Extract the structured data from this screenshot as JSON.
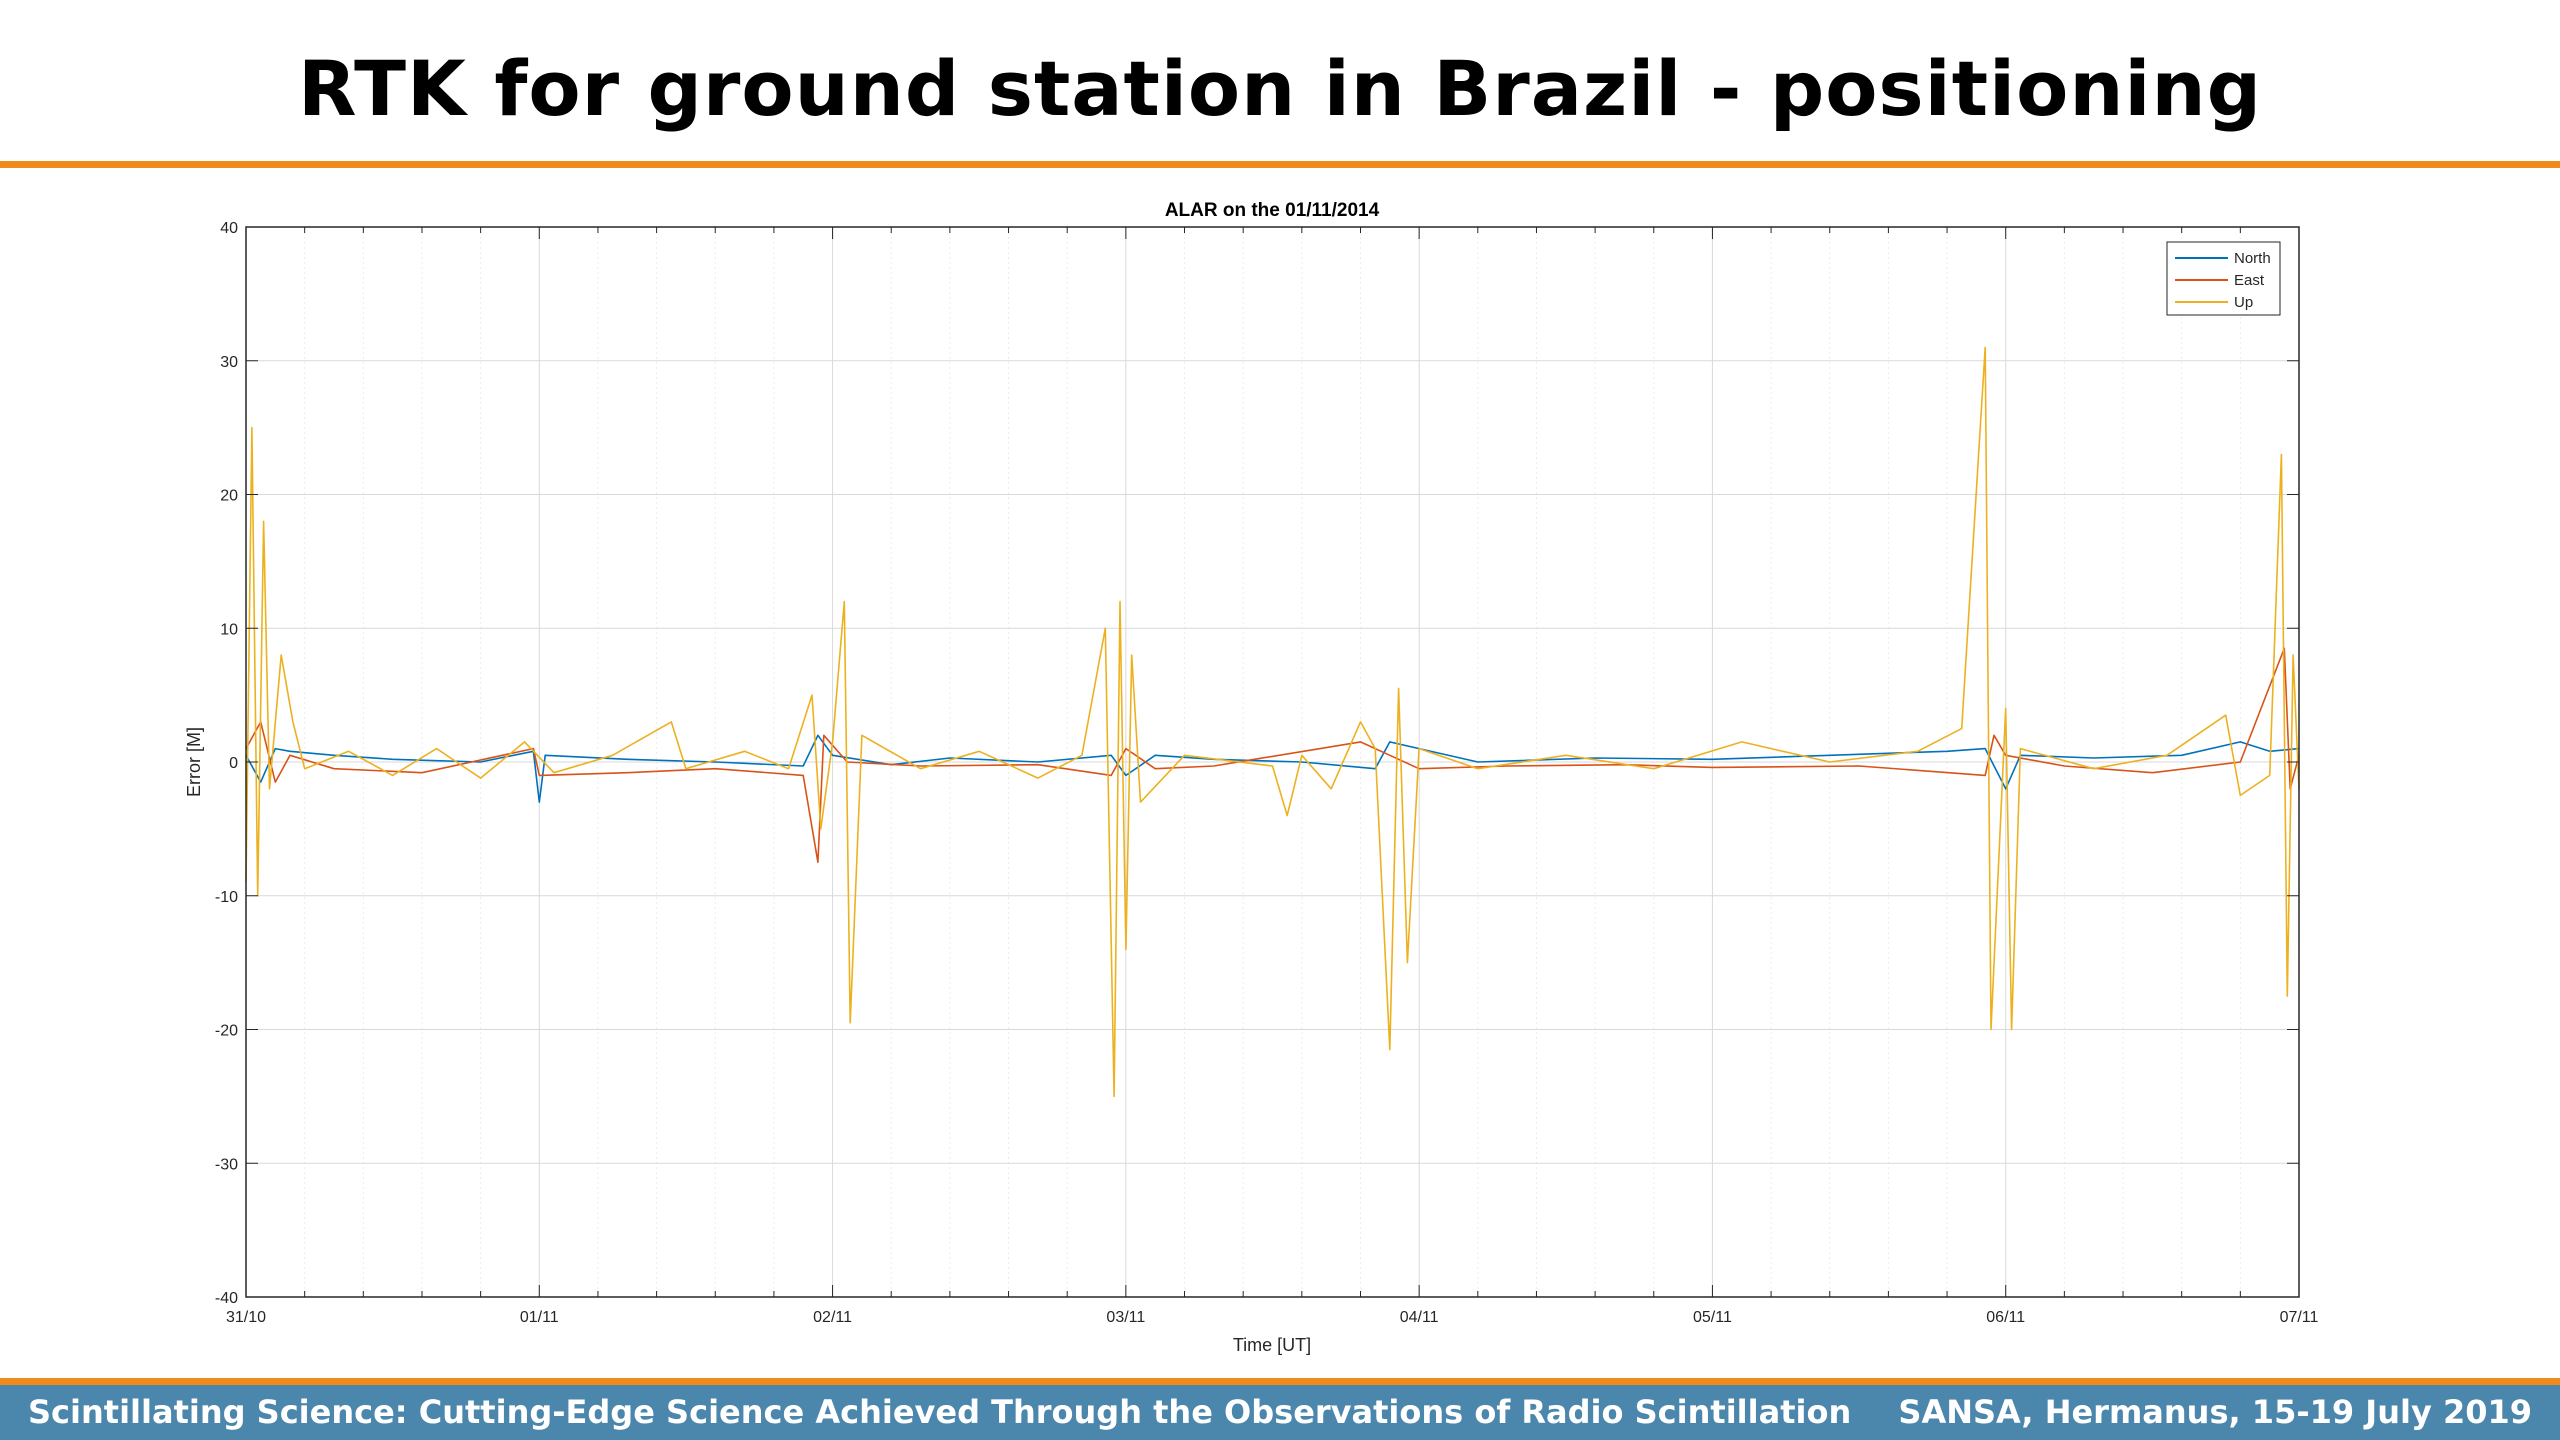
{
  "slide": {
    "title": "RTK for ground station in Brazil - positioning"
  },
  "footer": {
    "left_text": "Scintillating Science: Cutting-Edge Science Achieved Through the Observations of Radio Scintillation",
    "right_text": "SANSA, Hermanus, 15-19 July 2019"
  },
  "colors": {
    "accent_orange": "#f08a1c",
    "footer_blue": "#4b86ac",
    "north": "#0072bd",
    "east": "#d95319",
    "up": "#edb120"
  },
  "chart_data": {
    "type": "line",
    "title": "ALAR on the 01/11/2014",
    "xlabel": "Time [UT]",
    "ylabel": "Error [M]",
    "xlim": [
      0,
      7
    ],
    "ylim": [
      -40,
      40
    ],
    "xticks": [
      0,
      1,
      2,
      3,
      4,
      5,
      6,
      7
    ],
    "xtick_labels": [
      "31/10",
      "01/11",
      "02/11",
      "03/11",
      "04/11",
      "05/11",
      "06/11",
      "07/11"
    ],
    "yticks": [
      -40,
      -30,
      -20,
      -10,
      0,
      10,
      20,
      30,
      40
    ],
    "ytick_labels": [
      "-40",
      "-30",
      "-20",
      "-10",
      "0",
      "10",
      "20",
      "30",
      "40"
    ],
    "x_unit": "days since 31/10/2014 00:00 UT",
    "grid": true,
    "legend_position": "top-right",
    "series": [
      {
        "name": "North",
        "color": "#0072bd",
        "points": [
          [
            0.0,
            0.5
          ],
          [
            0.05,
            -1.5
          ],
          [
            0.1,
            1.0
          ],
          [
            0.15,
            0.8
          ],
          [
            0.3,
            0.5
          ],
          [
            0.5,
            0.2
          ],
          [
            0.8,
            0.0
          ],
          [
            0.98,
            0.8
          ],
          [
            1.0,
            -3.0
          ],
          [
            1.02,
            0.5
          ],
          [
            1.3,
            0.2
          ],
          [
            1.6,
            0.0
          ],
          [
            1.9,
            -0.3
          ],
          [
            1.95,
            2.0
          ],
          [
            2.0,
            0.5
          ],
          [
            2.2,
            -0.2
          ],
          [
            2.4,
            0.3
          ],
          [
            2.7,
            0.0
          ],
          [
            2.95,
            0.5
          ],
          [
            3.0,
            -1.0
          ],
          [
            3.1,
            0.5
          ],
          [
            3.3,
            0.2
          ],
          [
            3.6,
            0.0
          ],
          [
            3.85,
            -0.5
          ],
          [
            3.9,
            1.5
          ],
          [
            4.0,
            1.0
          ],
          [
            4.2,
            0.0
          ],
          [
            4.6,
            0.3
          ],
          [
            5.0,
            0.2
          ],
          [
            5.4,
            0.5
          ],
          [
            5.8,
            0.8
          ],
          [
            5.93,
            1.0
          ],
          [
            6.0,
            -2.0
          ],
          [
            6.05,
            0.5
          ],
          [
            6.3,
            0.3
          ],
          [
            6.6,
            0.5
          ],
          [
            6.8,
            1.5
          ],
          [
            6.9,
            0.8
          ],
          [
            7.0,
            1.0
          ]
        ]
      },
      {
        "name": "East",
        "color": "#d95319",
        "points": [
          [
            0.0,
            1.0
          ],
          [
            0.05,
            3.0
          ],
          [
            0.1,
            -1.5
          ],
          [
            0.15,
            0.5
          ],
          [
            0.3,
            -0.5
          ],
          [
            0.6,
            -0.8
          ],
          [
            0.98,
            1.0
          ],
          [
            1.0,
            -1.0
          ],
          [
            1.3,
            -0.8
          ],
          [
            1.6,
            -0.5
          ],
          [
            1.9,
            -1.0
          ],
          [
            1.95,
            -7.5
          ],
          [
            1.97,
            2.0
          ],
          [
            2.05,
            0.0
          ],
          [
            2.3,
            -0.3
          ],
          [
            2.7,
            -0.2
          ],
          [
            2.95,
            -1.0
          ],
          [
            3.0,
            1.0
          ],
          [
            3.1,
            -0.5
          ],
          [
            3.3,
            -0.3
          ],
          [
            3.8,
            1.5
          ],
          [
            3.9,
            0.5
          ],
          [
            4.0,
            -0.5
          ],
          [
            4.3,
            -0.3
          ],
          [
            4.7,
            -0.2
          ],
          [
            5.0,
            -0.4
          ],
          [
            5.5,
            -0.3
          ],
          [
            5.93,
            -1.0
          ],
          [
            5.96,
            2.0
          ],
          [
            6.0,
            0.5
          ],
          [
            6.2,
            -0.3
          ],
          [
            6.5,
            -0.8
          ],
          [
            6.8,
            0.0
          ],
          [
            6.95,
            8.5
          ],
          [
            6.97,
            -2.0
          ],
          [
            7.0,
            0.5
          ]
        ]
      },
      {
        "name": "Up",
        "color": "#edb120",
        "points": [
          [
            0.0,
            -9.0
          ],
          [
            0.02,
            25.0
          ],
          [
            0.04,
            -10.0
          ],
          [
            0.06,
            18.0
          ],
          [
            0.08,
            -2.0
          ],
          [
            0.12,
            8.0
          ],
          [
            0.16,
            3.0
          ],
          [
            0.2,
            -0.5
          ],
          [
            0.35,
            0.8
          ],
          [
            0.5,
            -1.0
          ],
          [
            0.65,
            1.0
          ],
          [
            0.8,
            -1.2
          ],
          [
            0.95,
            1.5
          ],
          [
            1.05,
            -0.8
          ],
          [
            1.25,
            0.5
          ],
          [
            1.45,
            3.0
          ],
          [
            1.5,
            -0.5
          ],
          [
            1.7,
            0.8
          ],
          [
            1.85,
            -0.5
          ],
          [
            1.93,
            5.0
          ],
          [
            1.96,
            -5.0
          ],
          [
            2.0,
            1.5
          ],
          [
            2.04,
            12.0
          ],
          [
            2.06,
            -19.5
          ],
          [
            2.1,
            2.0
          ],
          [
            2.3,
            -0.5
          ],
          [
            2.5,
            0.8
          ],
          [
            2.7,
            -1.2
          ],
          [
            2.85,
            0.5
          ],
          [
            2.93,
            10.0
          ],
          [
            2.96,
            -25.0
          ],
          [
            2.98,
            12.0
          ],
          [
            3.0,
            -14.0
          ],
          [
            3.02,
            8.0
          ],
          [
            3.05,
            -3.0
          ],
          [
            3.2,
            0.5
          ],
          [
            3.5,
            -0.3
          ],
          [
            3.55,
            -4.0
          ],
          [
            3.6,
            0.5
          ],
          [
            3.7,
            -2.0
          ],
          [
            3.8,
            3.0
          ],
          [
            3.85,
            1.0
          ],
          [
            3.9,
            -21.5
          ],
          [
            3.93,
            5.5
          ],
          [
            3.96,
            -15.0
          ],
          [
            4.0,
            1.0
          ],
          [
            4.2,
            -0.5
          ],
          [
            4.5,
            0.5
          ],
          [
            4.8,
            -0.5
          ],
          [
            5.1,
            1.5
          ],
          [
            5.4,
            0.0
          ],
          [
            5.7,
            0.8
          ],
          [
            5.85,
            2.5
          ],
          [
            5.93,
            31.0
          ],
          [
            5.95,
            -20.0
          ],
          [
            6.0,
            4.0
          ],
          [
            6.02,
            -20.0
          ],
          [
            6.05,
            1.0
          ],
          [
            6.3,
            -0.5
          ],
          [
            6.55,
            0.5
          ],
          [
            6.75,
            3.5
          ],
          [
            6.8,
            -2.5
          ],
          [
            6.9,
            -1.0
          ],
          [
            6.94,
            23.0
          ],
          [
            6.96,
            -17.5
          ],
          [
            6.98,
            8.0
          ],
          [
            7.0,
            -2.0
          ]
        ]
      }
    ]
  }
}
